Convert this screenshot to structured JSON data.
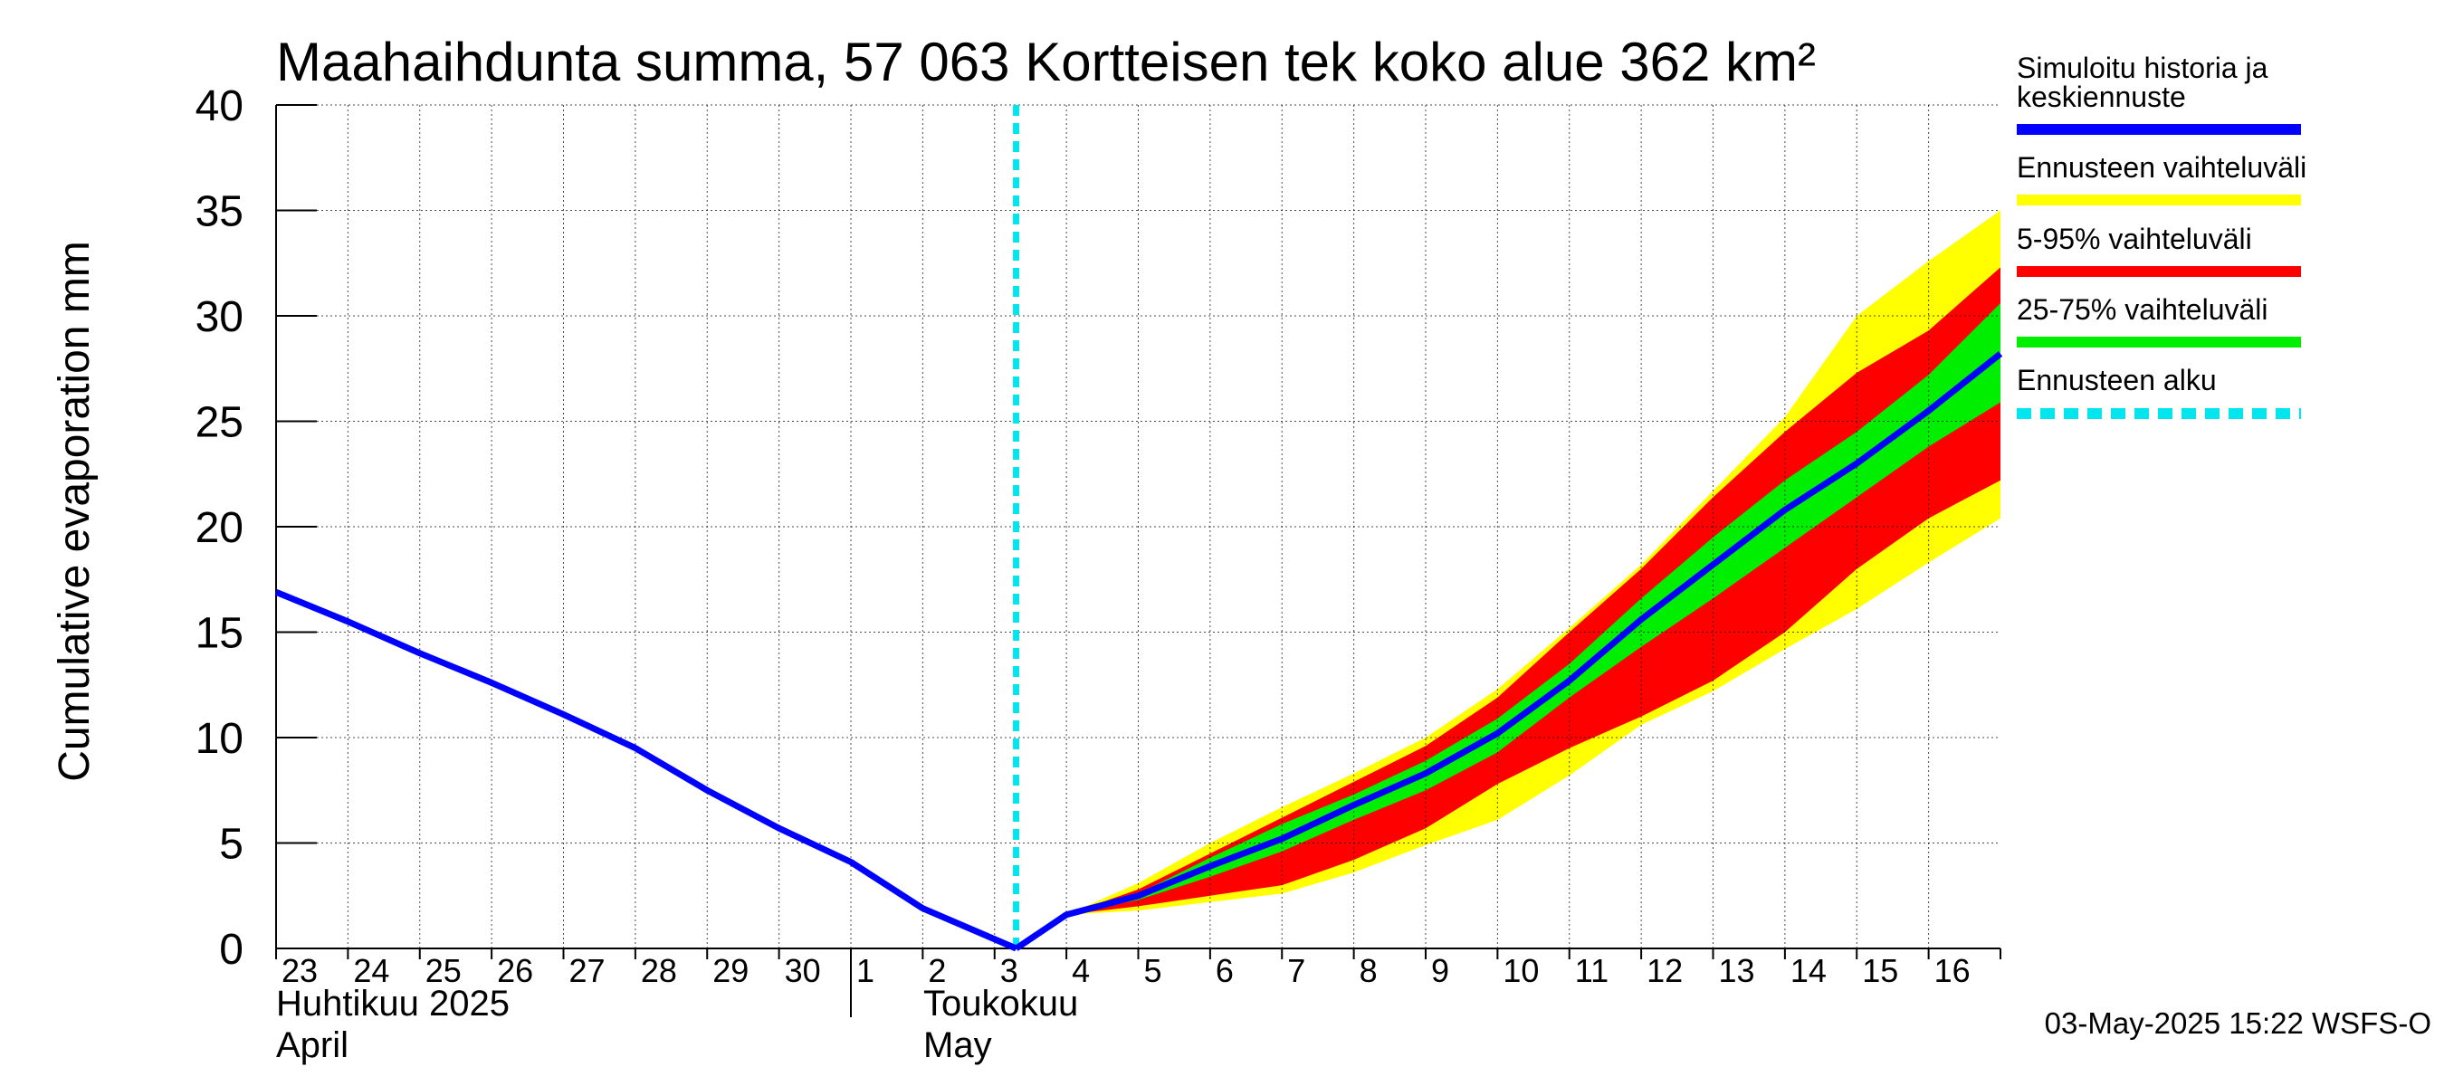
{
  "chart_data": {
    "type": "area",
    "title": "Maahaihdunta summa, 57 063 Kortteisen tek koko alue 362 km²",
    "ylabel": "Cumulative evaporation   mm",
    "xlabel": "",
    "ylim": [
      0,
      40
    ],
    "y_ticks": [
      "0",
      "5",
      "10",
      "15",
      "20",
      "25",
      "30",
      "35",
      "40"
    ],
    "grid": true,
    "x_ticks": [
      "23",
      "24",
      "25",
      "26",
      "27",
      "28",
      "29",
      "30",
      "1",
      "2",
      "3",
      "4",
      "5",
      "6",
      "7",
      "8",
      "9",
      "10",
      "11",
      "12",
      "13",
      "14",
      "15",
      "16"
    ],
    "month_labels": [
      {
        "line1": "Huhtikuu  2025",
        "line2": "April"
      },
      {
        "line1": "Toukokuu",
        "line2": "May"
      }
    ],
    "forecast_start_day": 10.3,
    "history": {
      "name": "Simuloitu historia ja keskiennuste",
      "color": "#0000ff",
      "x": [
        0,
        1,
        2,
        3,
        4,
        5,
        6,
        7,
        8,
        9,
        10.3
      ],
      "values": [
        16.9,
        15.5,
        14.0,
        12.6,
        11.1,
        9.5,
        7.5,
        5.7,
        4.1,
        1.9,
        0.0
      ]
    },
    "forecast_x": [
      10.3,
      11,
      12,
      13,
      14,
      15,
      16,
      17,
      18,
      19,
      20,
      21,
      22,
      23,
      24
    ],
    "median": [
      0.0,
      1.6,
      2.5,
      3.9,
      5.2,
      6.8,
      8.3,
      10.2,
      12.7,
      15.6,
      18.2,
      20.8,
      23.0,
      25.5,
      28.2
    ],
    "band_5_95": {
      "low": [
        0.0,
        1.6,
        2.0,
        2.5,
        3.0,
        4.2,
        5.7,
        7.8,
        9.5,
        11.0,
        12.7,
        15.0,
        18.0,
        20.4,
        22.2
      ],
      "high": [
        0.0,
        1.6,
        2.8,
        4.5,
        6.2,
        7.9,
        9.6,
        11.9,
        15.0,
        18.0,
        21.4,
        24.5,
        27.3,
        29.3,
        32.3
      ]
    },
    "band_25_75": {
      "low": [
        0.0,
        1.6,
        2.3,
        3.4,
        4.6,
        6.1,
        7.5,
        9.3,
        11.9,
        14.3,
        16.6,
        19.0,
        21.4,
        23.8,
        25.9
      ],
      "high": [
        0.0,
        1.6,
        2.6,
        4.3,
        5.9,
        7.3,
        8.9,
        10.9,
        13.5,
        16.6,
        19.5,
        22.2,
        24.5,
        27.2,
        30.6
      ]
    },
    "band_full": {
      "low": [
        0.0,
        1.6,
        1.8,
        2.2,
        2.6,
        3.6,
        4.9,
        6.1,
        8.2,
        10.6,
        12.2,
        14.2,
        16.1,
        18.3,
        20.4
      ],
      "high": [
        0.0,
        1.6,
        3.1,
        5.0,
        6.7,
        8.3,
        10.0,
        12.3,
        15.2,
        18.2,
        21.7,
        25.2,
        30.0,
        32.6,
        35.0
      ]
    },
    "legend": {
      "placement": "right",
      "entries": [
        {
          "label_line1": "Simuloitu historia ja",
          "label_line2": "keskiennuste",
          "color": "#0000ff",
          "style": "line"
        },
        {
          "label_line1": "Ennusteen vaihteluväli",
          "label_line2": "",
          "color": "#ffff00",
          "style": "band"
        },
        {
          "label_line1": "5-95% vaihteluväli",
          "label_line2": "",
          "color": "#ff0000",
          "style": "band"
        },
        {
          "label_line1": "25-75% vaihteluväli",
          "label_line2": "",
          "color": "#00ee00",
          "style": "band"
        },
        {
          "label_line1": "Ennusteen alku",
          "label_line2": "",
          "color": "#00e5ee",
          "style": "dashed"
        }
      ]
    },
    "footer": "03-May-2025 15:22 WSFS-O"
  }
}
